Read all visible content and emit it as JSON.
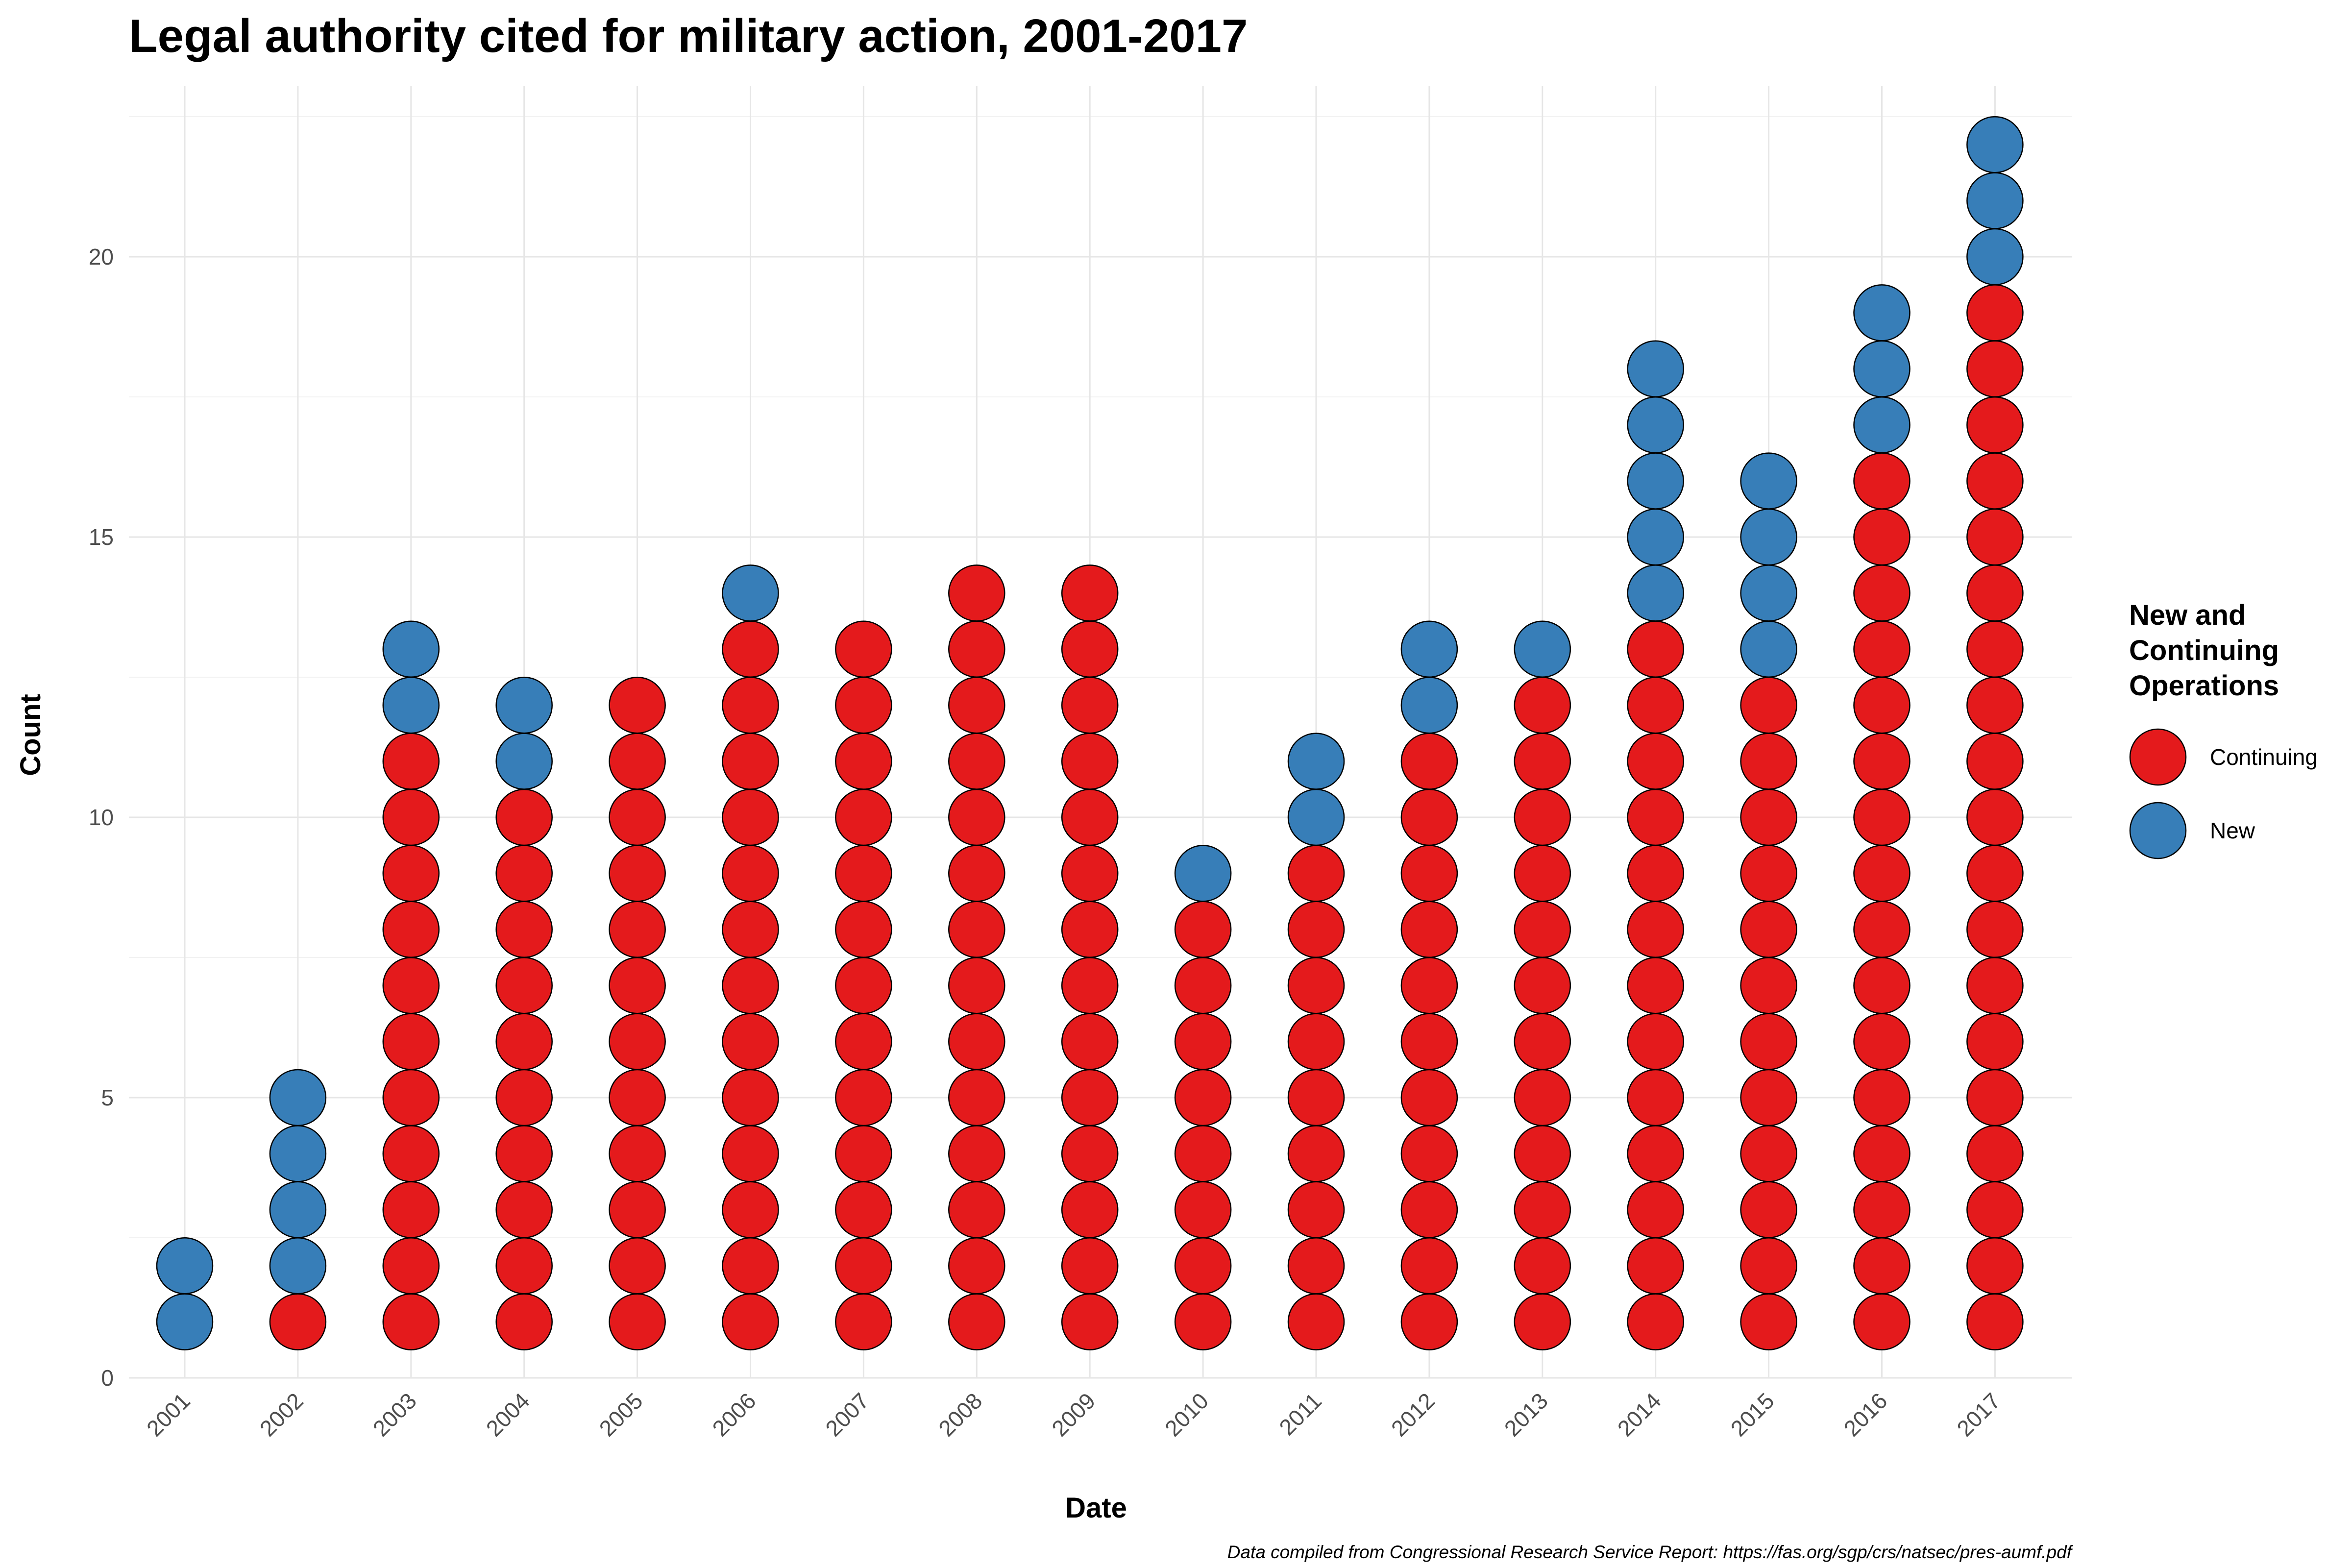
{
  "chart_data": {
    "type": "dotplot",
    "title": "Legal authority cited for military action, 2001-2017",
    "xlabel": "Date",
    "ylabel": "Count",
    "ylim": [
      0,
      22.5
    ],
    "yticks": [
      0,
      5,
      10,
      15,
      20
    ],
    "grid": true,
    "legend_position": "right",
    "legend_title_lines": [
      "New and",
      "Continuing",
      "Operations"
    ],
    "caption": "Data compiled from Congressional Research Service Report: https://fas.org/sgp/crs/natsec/pres-aumf.pdf",
    "categories": [
      "2001",
      "2002",
      "2003",
      "2004",
      "2005",
      "2006",
      "2007",
      "2008",
      "2009",
      "2010",
      "2011",
      "2012",
      "2013",
      "2014",
      "2015",
      "2016",
      "2017"
    ],
    "series": [
      {
        "name": "Continuing",
        "color": "#e41a1c",
        "values": [
          0,
          1,
          11,
          10,
          12,
          13,
          13,
          14,
          14,
          8,
          9,
          11,
          12,
          13,
          12,
          16,
          19
        ]
      },
      {
        "name": "New",
        "color": "#377eb8",
        "values": [
          2,
          4,
          2,
          2,
          0,
          1,
          0,
          0,
          0,
          1,
          2,
          2,
          1,
          5,
          4,
          3,
          3
        ]
      }
    ]
  }
}
